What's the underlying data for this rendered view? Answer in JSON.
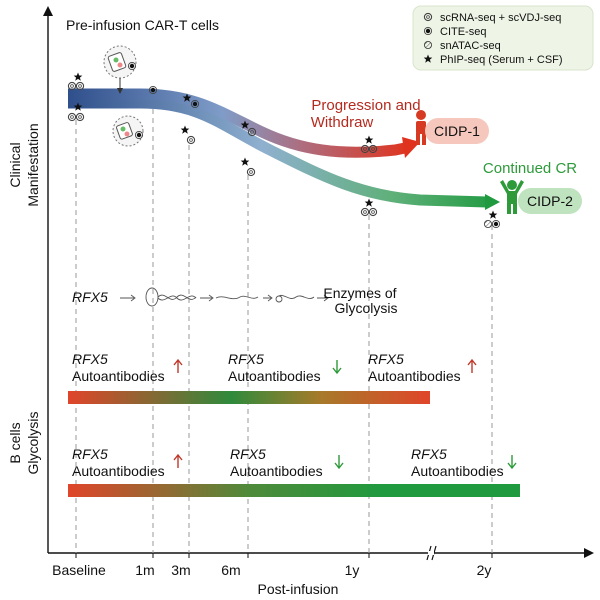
{
  "title": "Pre-infusion CAR-T cells",
  "y_axis": {
    "upper_label_line1": "Clinical",
    "upper_label_line2": "Manifestation",
    "lower_label_line1": "B cells",
    "lower_label_line2": "Glycolysis"
  },
  "x_axis": {
    "label": "Post-infusion",
    "ticks": [
      "Baseline",
      "1m",
      "3m",
      "6m",
      "1y",
      "2y"
    ]
  },
  "legend": [
    {
      "symbol": "ring",
      "label": "scRNA-seq + scVDJ-seq"
    },
    {
      "symbol": "dot",
      "label": "CITE-seq"
    },
    {
      "symbol": "hatched",
      "label": "snATAC-seq"
    },
    {
      "symbol": "star",
      "label": "PhIP-seq (Serum + CSF)"
    }
  ],
  "outcomes": {
    "progression_line1": "Progression and",
    "progression_line2": "Withdraw",
    "patient1": "CIDP-1",
    "continued": "Continued CR",
    "patient2": "CIDP-2"
  },
  "pathway": {
    "gene": "RFX5",
    "product_line1": "Enzymes of",
    "product_line2": "Glycolysis"
  },
  "bar1_labels": [
    {
      "gene": "RFX5",
      "text": "Autoantibodies",
      "trend": "up"
    },
    {
      "gene": "RFX5",
      "text": "Autoantibodies",
      "trend": "down"
    },
    {
      "gene": "RFX5",
      "text": "Autoantibodies",
      "trend": "up"
    }
  ],
  "bar2_labels": [
    {
      "gene": "RFX5",
      "text": "Autoantibodies",
      "trend": "up"
    },
    {
      "gene": "RFX5",
      "text": "Autoantibodies",
      "trend": "down"
    },
    {
      "gene": "RFX5",
      "text": "Autoantibodies",
      "trend": "down"
    }
  ],
  "colors": {
    "progression": "#c0392b",
    "continued": "#2e9a3a",
    "pipe_blue": "#3b5f9e",
    "bar_red": "#e0452a",
    "bar_green": "#1f9a3f",
    "up_arrow": "#c0392b",
    "down_arrow": "#2e9a3a",
    "cidp1_fill": "#f6c8bd",
    "cidp2_fill": "#bfe3bf"
  }
}
